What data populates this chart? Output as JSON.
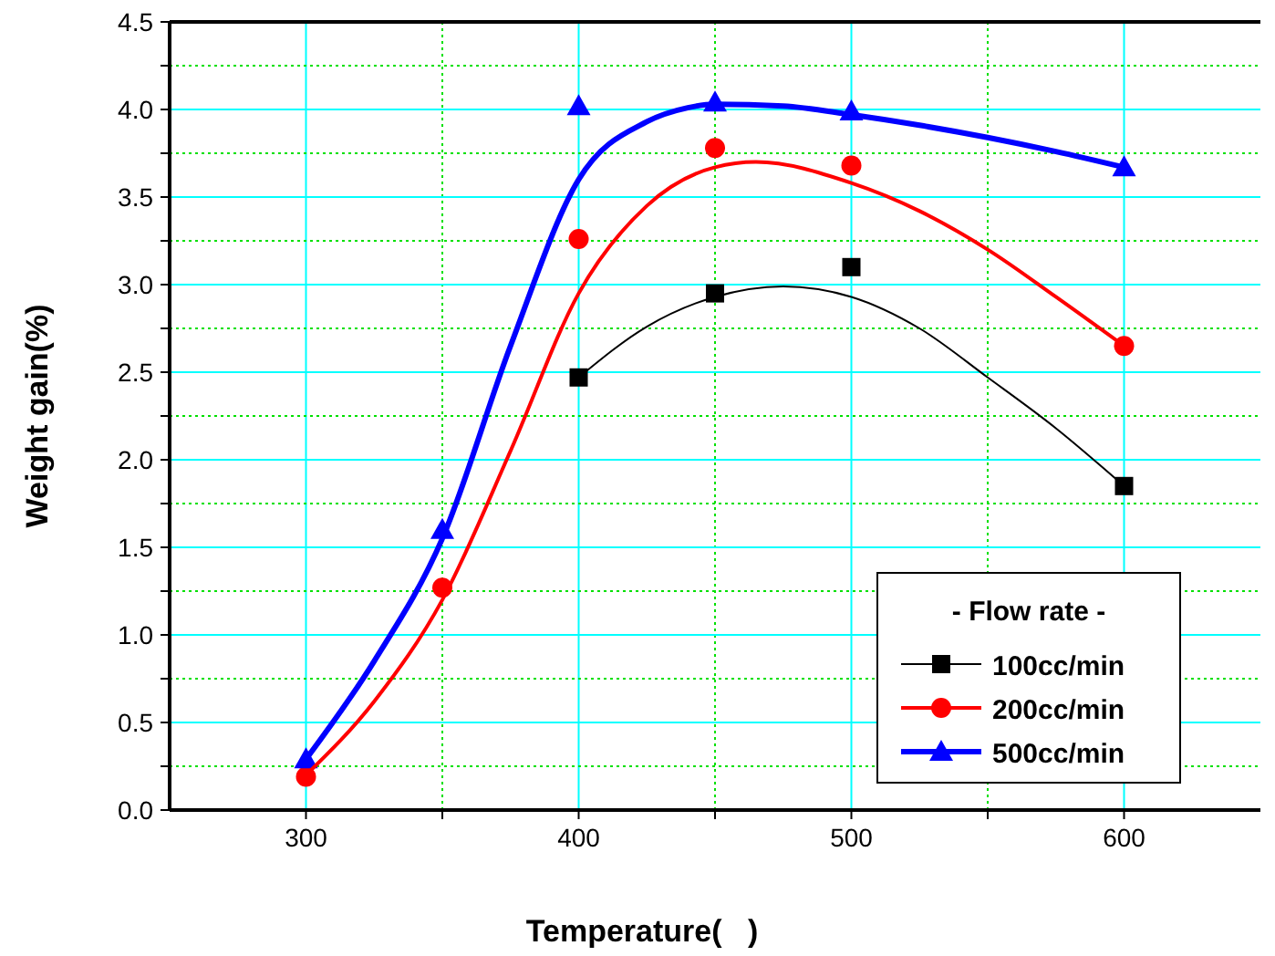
{
  "chart_data": {
    "type": "scatter",
    "xlabel": "Temperature(   )",
    "ylabel": "Weight gain(%)",
    "legend_title": "- Flow rate -",
    "legend": "bottom right",
    "grid": true,
    "xlim": [
      250,
      650
    ],
    "xticks": [
      300,
      {
        "value": 350,
        "label": null
      },
      400,
      {
        "value": 450,
        "label": null
      },
      500,
      {
        "value": 550,
        "label": null
      },
      600
    ],
    "ylim": [
      0,
      4.5
    ],
    "yticks": [
      "0.0",
      {
        "value": 0.25,
        "label": null
      },
      {
        "value": 0.5,
        "label": "0.5"
      },
      {
        "value": 0.75,
        "label": null
      },
      {
        "value": 1,
        "label": "1.0"
      },
      {
        "value": 1.25,
        "label": null
      },
      {
        "value": 1.5,
        "label": "1.5"
      },
      {
        "value": 1.75,
        "label": null
      },
      {
        "value": 2,
        "label": "2.0"
      },
      {
        "value": 2.25,
        "label": null
      },
      {
        "value": 2.5,
        "label": "2.5"
      },
      {
        "value": 2.75,
        "label": null
      },
      {
        "value": 3,
        "label": "3.0"
      },
      {
        "value": 3.25,
        "label": null
      },
      {
        "value": 3.5,
        "label": "3.5"
      },
      {
        "value": 3.75,
        "label": null
      },
      {
        "value": 4,
        "label": "4.0"
      },
      {
        "value": 4.25,
        "label": null
      },
      {
        "value": 4.5,
        "label": "4.5"
      }
    ],
    "series": [
      {
        "name": "100cc/min",
        "color": "#000000",
        "marker": "square",
        "x": [
          400,
          450,
          500,
          600
        ],
        "values": [
          2.47,
          2.95,
          3.1,
          1.85
        ]
      },
      {
        "name": "200cc/min",
        "color": "#ff0000",
        "marker": "circle",
        "x": [
          300,
          350,
          400,
          450,
          500,
          600
        ],
        "values": [
          0.19,
          1.27,
          3.26,
          3.78,
          3.68,
          2.65
        ]
      },
      {
        "name": "500cc/min",
        "color": "#0000ff",
        "marker": "triangle",
        "x": [
          300,
          350,
          400,
          450,
          500,
          600
        ],
        "values": [
          0.29,
          1.6,
          4.02,
          4.04,
          3.99,
          3.67
        ]
      },
      {
        "type": "line",
        "color": "#000000",
        "x": [
          400,
          425,
          450,
          475,
          500,
          525,
          550,
          575,
          600
        ],
        "values": [
          2.47,
          2.76,
          2.93,
          2.99,
          2.93,
          2.75,
          2.47,
          2.18,
          1.85
        ]
      },
      {
        "type": "line",
        "color": "#ff0000",
        "x": [
          300,
          325,
          350,
          375,
          400,
          425,
          450,
          465,
          500,
          525,
          550,
          575,
          600
        ],
        "values": [
          0.2,
          0.62,
          1.2,
          2.05,
          2.95,
          3.45,
          3.67,
          3.7,
          3.58,
          3.42,
          3.2,
          2.93,
          2.65
        ]
      },
      {
        "type": "line",
        "color": "#0000ff",
        "x": [
          300,
          325,
          350,
          375,
          400,
          425,
          440,
          450,
          475,
          500,
          525,
          550,
          575,
          600
        ],
        "values": [
          0.29,
          0.85,
          1.55,
          2.65,
          3.6,
          3.93,
          4.01,
          4.03,
          4.02,
          3.97,
          3.91,
          3.84,
          3.76,
          3.67
        ]
      }
    ]
  }
}
